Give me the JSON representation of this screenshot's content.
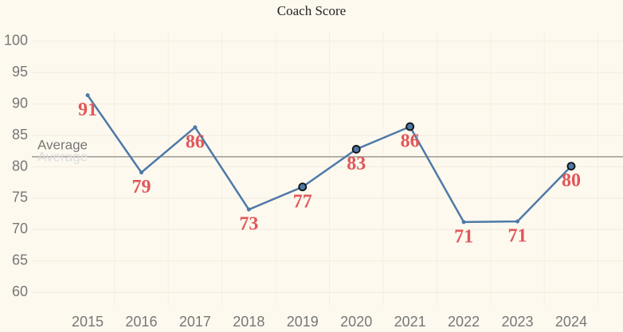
{
  "chart_data": {
    "type": "line",
    "title": "Coach Score",
    "categories": [
      "2015",
      "2016",
      "2017",
      "2018",
      "2019",
      "2020",
      "2021",
      "2022",
      "2023",
      "2024"
    ],
    "series": [
      {
        "name": "Coach Score",
        "color": "#4e79a7",
        "values": [
          91.4,
          79.1,
          86.3,
          73.2,
          76.8,
          82.8,
          86.4,
          71.2,
          71.3,
          80.1
        ],
        "value_labels": [
          "91",
          "79",
          "86",
          "73",
          "77",
          "83",
          "86",
          "71",
          "71",
          "80"
        ],
        "highlight": [
          false,
          false,
          false,
          false,
          true,
          true,
          true,
          false,
          false,
          true
        ]
      }
    ],
    "value_label_color": "#e15759",
    "reference_line": {
      "label": "Average",
      "value": 81.6,
      "color": "#a09a92"
    },
    "ylim": [
      58,
      101.5
    ],
    "yticks": [
      60,
      65,
      70,
      75,
      80,
      85,
      90,
      95,
      100
    ],
    "grid": true
  }
}
